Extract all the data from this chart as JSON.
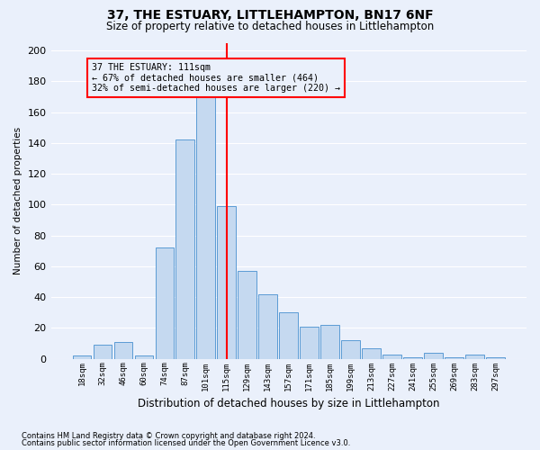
{
  "title1": "37, THE ESTUARY, LITTLEHAMPTON, BN17 6NF",
  "title2": "Size of property relative to detached houses in Littlehampton",
  "xlabel": "Distribution of detached houses by size in Littlehampton",
  "ylabel": "Number of detached properties",
  "footnote1": "Contains HM Land Registry data © Crown copyright and database right 2024.",
  "footnote2": "Contains public sector information licensed under the Open Government Licence v3.0.",
  "bar_labels": [
    "18sqm",
    "32sqm",
    "46sqm",
    "60sqm",
    "74sqm",
    "87sqm",
    "101sqm",
    "115sqm",
    "129sqm",
    "143sqm",
    "157sqm",
    "171sqm",
    "185sqm",
    "199sqm",
    "213sqm",
    "227sqm",
    "241sqm",
    "255sqm",
    "269sqm",
    "283sqm",
    "297sqm"
  ],
  "bar_values": [
    2,
    9,
    11,
    2,
    72,
    142,
    170,
    99,
    57,
    42,
    30,
    21,
    22,
    12,
    7,
    3,
    1,
    4,
    1,
    3,
    1
  ],
  "bar_color": "#c5d9f0",
  "bar_edgecolor": "#5b9bd5",
  "vline_color": "red",
  "annotation_title": "37 THE ESTUARY: 111sqm",
  "annotation_line1": "← 67% of detached houses are smaller (464)",
  "annotation_line2": "32% of semi-detached houses are larger (220) →",
  "annotation_box_color": "red",
  "ylim": [
    0,
    205
  ],
  "yticks": [
    0,
    20,
    40,
    60,
    80,
    100,
    120,
    140,
    160,
    180,
    200
  ],
  "background_color": "#eaf0fb",
  "grid_color": "white",
  "vline_pos": 7.5
}
